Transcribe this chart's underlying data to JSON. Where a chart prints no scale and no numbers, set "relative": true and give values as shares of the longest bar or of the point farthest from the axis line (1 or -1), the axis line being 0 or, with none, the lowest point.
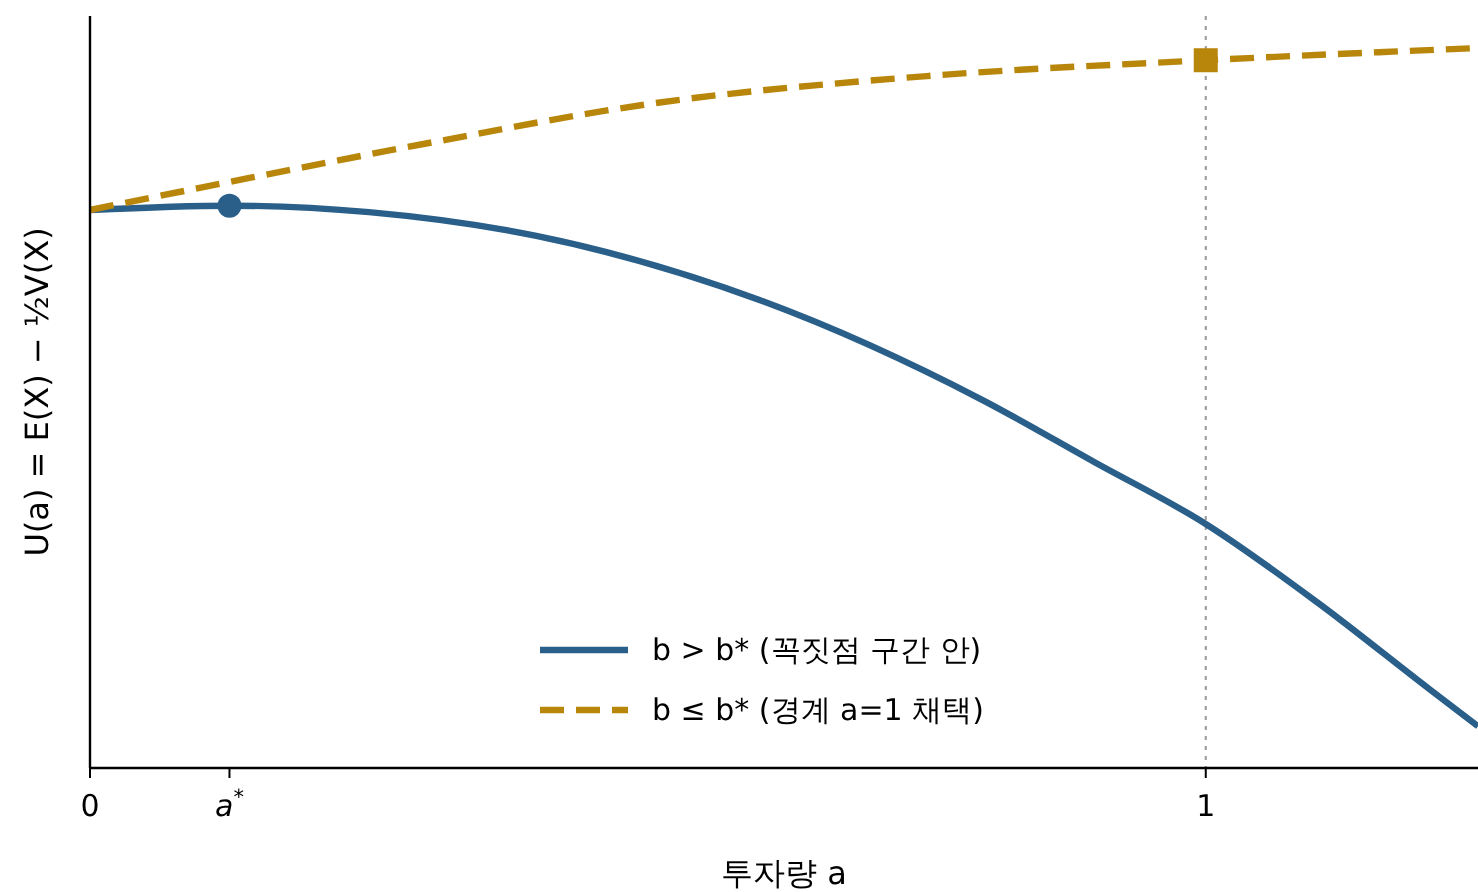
{
  "chart_data": {
    "type": "line",
    "relative": true,
    "xlabel": "투자량 a",
    "ylabel": "U(a) = E(X) − ½V(X)",
    "xlim": [
      0,
      1.244
    ],
    "xticks": [
      0,
      {
        "value": 0.125,
        "label": "a$^{*}$"
      },
      1
    ],
    "legend": "bottom",
    "ref_lines": [
      {
        "axis": "x",
        "value": 1,
        "color": "#999999",
        "line_style": "dotted"
      }
    ],
    "series": [
      {
        "name": "b > b* (꼭짓점 구간 안)",
        "color": "#2a5f8a",
        "line_style": "solid",
        "x": [
          0,
          0.125,
          0.25,
          0.4,
          0.6,
          0.8,
          0.9,
          1,
          1.1,
          1.2,
          1.244
        ],
        "values": [
          0.775,
          0.781,
          0.772,
          0.739,
          0.65,
          0.511,
          0.425,
          0.339,
          0.23,
          0.11,
          0.058
        ]
      },
      {
        "name": "b ≤ b* (경계 a=1 채택)",
        "color": "#b8860b",
        "line_style": "dashed",
        "x": [
          0,
          0.125,
          0.3,
          0.5,
          0.75,
          1,
          1.244
        ],
        "values": [
          0.775,
          0.814,
          0.867,
          0.922,
          0.961,
          0.983,
          1
        ]
      },
      {
        "color": "#2a5f8a",
        "type": "scatter",
        "marker": "circle",
        "x": [
          0.125
        ],
        "values": [
          0.781
        ]
      },
      {
        "color": "#b8860b",
        "type": "scatter",
        "marker": "square",
        "x": [
          1
        ],
        "values": [
          0.983
        ]
      }
    ]
  }
}
